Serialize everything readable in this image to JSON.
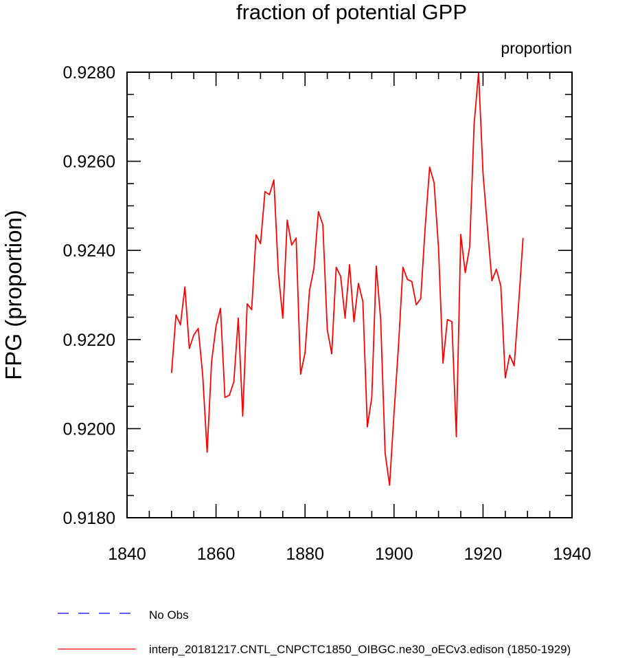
{
  "chart_data": {
    "type": "line",
    "title": "fraction of potential GPP",
    "units_label": "proportion",
    "xlabel": "",
    "ylabel": "FPG  (proportion)",
    "xlim": [
      1840,
      1940
    ],
    "ylim": [
      0.918,
      0.928
    ],
    "x_ticks": [
      1840,
      1860,
      1880,
      1900,
      1920,
      1940
    ],
    "x_tick_labels": [
      "1840",
      "1860",
      "1880",
      "1900",
      "1920",
      "1940"
    ],
    "y_ticks": [
      0.918,
      0.92,
      0.922,
      0.924,
      0.926,
      0.928
    ],
    "y_tick_labels": [
      "0.9180",
      "0.9200",
      "0.9220",
      "0.9240",
      "0.9260",
      "0.9280"
    ],
    "x_minor_step": 5,
    "y_minor_step": 0.0005,
    "grid": false,
    "legend_position": "bottom",
    "series": [
      {
        "name": "interp_20181217.CNTL_CNPCTC1850_OIBGC.ne30_oECv3.edison (1850-1929)",
        "color": "#ff0000",
        "dash": "solid",
        "x": [
          1850,
          1851,
          1852,
          1853,
          1854,
          1855,
          1856,
          1857,
          1858,
          1859,
          1860,
          1861,
          1862,
          1863,
          1864,
          1865,
          1866,
          1867,
          1868,
          1869,
          1870,
          1871,
          1872,
          1873,
          1874,
          1875,
          1876,
          1877,
          1878,
          1879,
          1880,
          1881,
          1882,
          1883,
          1884,
          1885,
          1886,
          1887,
          1888,
          1889,
          1890,
          1891,
          1892,
          1893,
          1894,
          1895,
          1896,
          1897,
          1898,
          1899,
          1900,
          1901,
          1902,
          1903,
          1904,
          1905,
          1906,
          1907,
          1908,
          1909,
          1910,
          1911,
          1912,
          1913,
          1914,
          1915,
          1916,
          1917,
          1918,
          1919,
          1920,
          1921,
          1922,
          1923,
          1924,
          1925,
          1926,
          1927,
          1928,
          1929
        ],
        "values": [
          0.92125,
          0.92255,
          0.92233,
          0.92318,
          0.9218,
          0.9221,
          0.92225,
          0.9212,
          0.91947,
          0.9215,
          0.9223,
          0.9227,
          0.9207,
          0.92075,
          0.92105,
          0.92248,
          0.92028,
          0.9228,
          0.92267,
          0.92435,
          0.92415,
          0.92532,
          0.92525,
          0.92558,
          0.9235,
          0.92248,
          0.92468,
          0.92412,
          0.92428,
          0.92122,
          0.9217,
          0.9231,
          0.9236,
          0.92487,
          0.92458,
          0.92222,
          0.92168,
          0.92362,
          0.92342,
          0.92248,
          0.92368,
          0.9224,
          0.92326,
          0.92285,
          0.92004,
          0.9207,
          0.92365,
          0.92245,
          0.91945,
          0.91873,
          0.92035,
          0.92185,
          0.92362,
          0.92335,
          0.9233,
          0.92278,
          0.92292,
          0.92452,
          0.92587,
          0.92552,
          0.92405,
          0.92147,
          0.92245,
          0.9224,
          0.91982,
          0.92436,
          0.9235,
          0.92408,
          0.92683,
          0.928,
          0.92573,
          0.9245,
          0.92332,
          0.92358,
          0.9232,
          0.92114,
          0.92165,
          0.92141,
          0.9228,
          0.92428
        ]
      }
    ],
    "legend": [
      {
        "label": "No Obs",
        "color": "#0000ff",
        "dash": "dashed"
      },
      {
        "label": "interp_20181217.CNTL_CNPCTC1850_OIBGC.ne30_oECv3.edison (1850-1929)",
        "color": "#ff0000",
        "dash": "solid"
      }
    ]
  }
}
